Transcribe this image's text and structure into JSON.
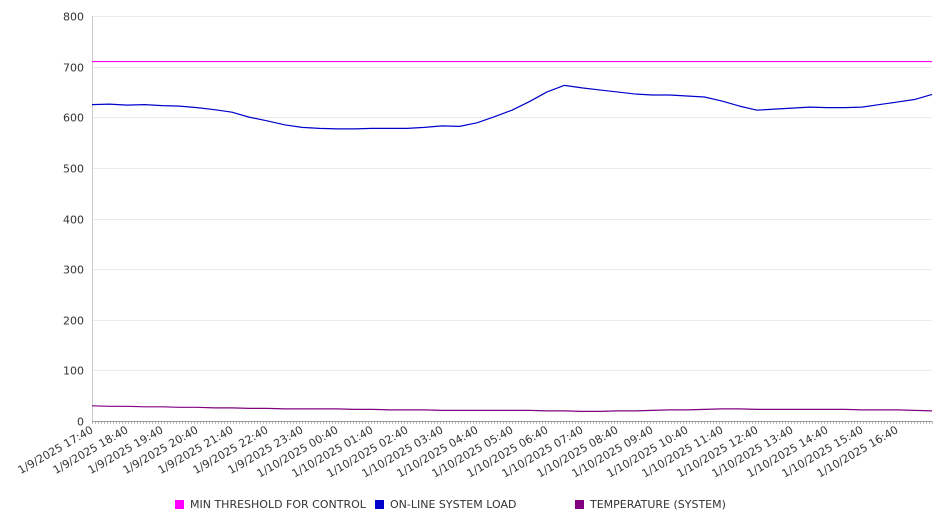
{
  "chart_data": {
    "type": "line",
    "title": "",
    "xlabel": "",
    "ylabel": "",
    "ylim": [
      0,
      800
    ],
    "y_ticks": [
      0,
      100,
      200,
      300,
      400,
      500,
      600,
      700,
      800
    ],
    "grid": "horizontal",
    "legend_position": "bottom",
    "x_tick_labels": [
      "1/9/2025 17:40",
      "1/9/2025 18:40",
      "1/9/2025 19:40",
      "1/9/2025 20:40",
      "1/9/2025 21:40",
      "1/9/2025 22:40",
      "1/9/2025 23:40",
      "1/10/2025 00:40",
      "1/10/2025 01:40",
      "1/10/2025 02:40",
      "1/10/2025 03:40",
      "1/10/2025 04:40",
      "1/10/2025 05:40",
      "1/10/2025 06:40",
      "1/10/2025 07:40",
      "1/10/2025 08:40",
      "1/10/2025 09:40",
      "1/10/2025 10:40",
      "1/10/2025 11:40",
      "1/10/2025 12:40",
      "1/10/2025 13:40",
      "1/10/2025 14:40",
      "1/10/2025 15:40",
      "1/10/2025 16:40"
    ],
    "x": [
      "1/9/2025 17:40",
      "1/9/2025 18:10",
      "1/9/2025 18:40",
      "1/9/2025 19:10",
      "1/9/2025 19:40",
      "1/9/2025 20:10",
      "1/9/2025 20:40",
      "1/9/2025 21:10",
      "1/9/2025 21:40",
      "1/9/2025 22:10",
      "1/9/2025 22:40",
      "1/9/2025 23:10",
      "1/9/2025 23:40",
      "1/10/2025 00:10",
      "1/10/2025 00:40",
      "1/10/2025 01:10",
      "1/10/2025 01:40",
      "1/10/2025 02:10",
      "1/10/2025 02:40",
      "1/10/2025 03:10",
      "1/10/2025 03:40",
      "1/10/2025 04:10",
      "1/10/2025 04:40",
      "1/10/2025 05:10",
      "1/10/2025 05:40",
      "1/10/2025 06:10",
      "1/10/2025 06:40",
      "1/10/2025 07:10",
      "1/10/2025 07:40",
      "1/10/2025 08:10",
      "1/10/2025 08:40",
      "1/10/2025 09:10",
      "1/10/2025 09:40",
      "1/10/2025 10:10",
      "1/10/2025 10:40",
      "1/10/2025 11:10",
      "1/10/2025 11:40",
      "1/10/2025 12:10",
      "1/10/2025 12:40",
      "1/10/2025 13:10",
      "1/10/2025 13:40",
      "1/10/2025 14:10",
      "1/10/2025 14:40",
      "1/10/2025 15:10",
      "1/10/2025 15:40",
      "1/10/2025 16:10",
      "1/10/2025 16:40",
      "1/10/2025 17:10",
      "1/10/2025 17:40"
    ],
    "series": [
      {
        "name": "MIN THRESHOLD FOR CONTROL",
        "color": "#ff00ff",
        "values": [
          710,
          710,
          710,
          710,
          710,
          710,
          710,
          710,
          710,
          710,
          710,
          710,
          710,
          710,
          710,
          710,
          710,
          710,
          710,
          710,
          710,
          710,
          710,
          710,
          710,
          710,
          710,
          710,
          710,
          710,
          710,
          710,
          710,
          710,
          710,
          710,
          710,
          710,
          710,
          710,
          710,
          710,
          710,
          710,
          710,
          710,
          710,
          710,
          710
        ]
      },
      {
        "name": "ON-LINE SYSTEM LOAD",
        "color": "#0000cc",
        "values": [
          625,
          626,
          624,
          625,
          623,
          622,
          619,
          615,
          610,
          600,
          593,
          585,
          580,
          578,
          577,
          577,
          578,
          578,
          578,
          580,
          583,
          582,
          589,
          601,
          614,
          631,
          650,
          663,
          658,
          654,
          650,
          646,
          644,
          644,
          642,
          640,
          632,
          622,
          614,
          616,
          618,
          620,
          619,
          619,
          620,
          625,
          630,
          635,
          645
        ]
      },
      {
        "name": "TEMPERATURE (SYSTEM)",
        "color": "#800080",
        "values": [
          30,
          29,
          29,
          28,
          28,
          27,
          27,
          26,
          26,
          25,
          25,
          24,
          24,
          24,
          24,
          23,
          23,
          22,
          22,
          22,
          21,
          21,
          21,
          21,
          21,
          21,
          20,
          20,
          19,
          19,
          20,
          20,
          21,
          22,
          22,
          23,
          24,
          24,
          23,
          23,
          23,
          23,
          23,
          23,
          22,
          22,
          22,
          21,
          20
        ]
      }
    ]
  }
}
